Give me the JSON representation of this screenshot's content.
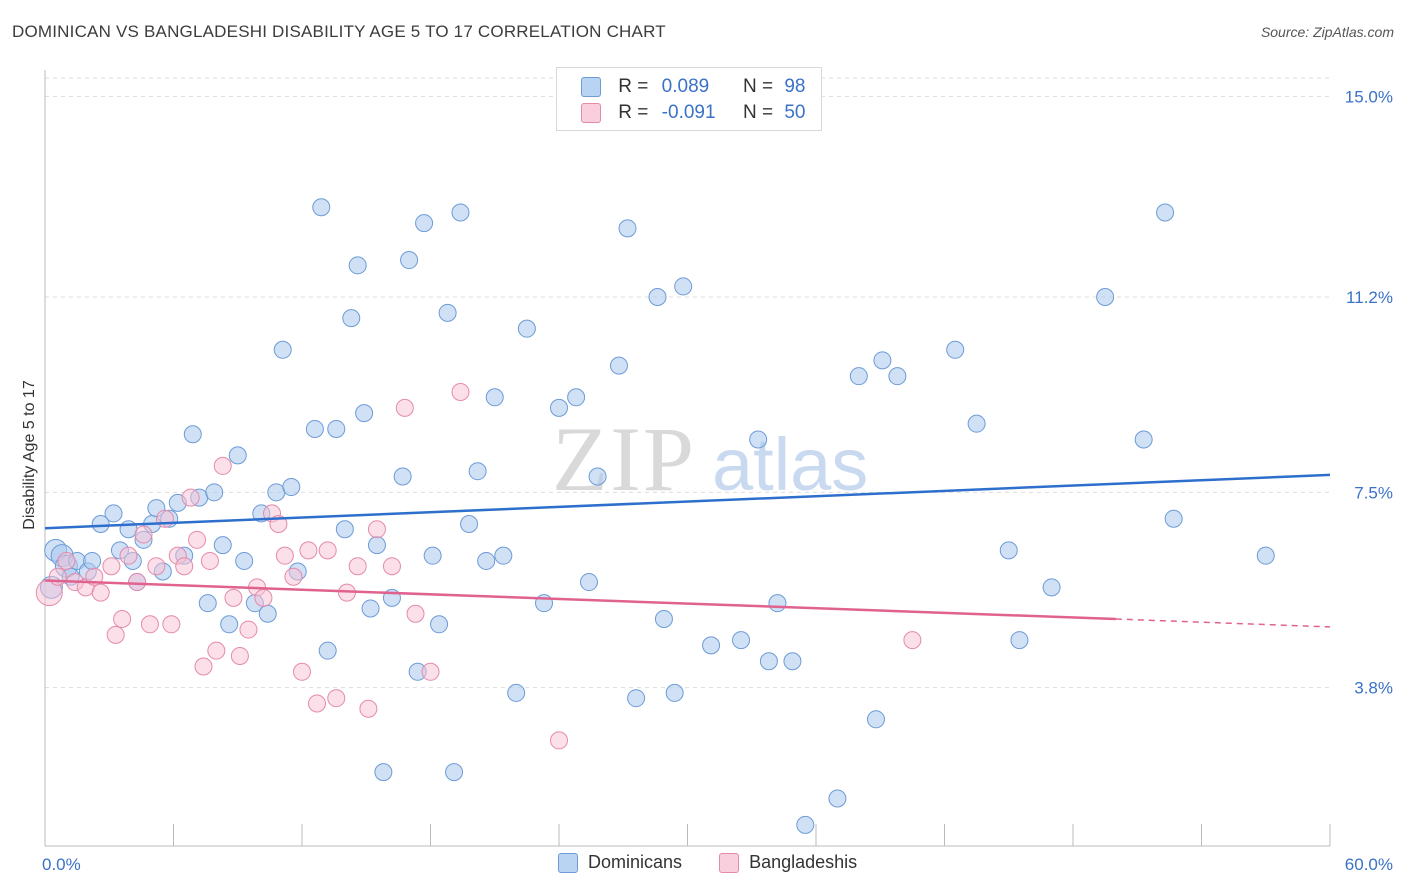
{
  "title": "DOMINICAN VS BANGLADESHI DISABILITY AGE 5 TO 17 CORRELATION CHART",
  "source": "Source: ZipAtlas.com",
  "watermark": {
    "zip": "ZIP",
    "atlas": "atlas"
  },
  "legend": {
    "dominicans": {
      "r_label": "R =",
      "r_value": "0.089",
      "n_label": "N =",
      "n_value": "98"
    },
    "bangladeshis": {
      "r_label": "R =",
      "r_value": "-0.091",
      "n_label": "N =",
      "n_value": "50"
    }
  },
  "colors": {
    "dominicans_fill": "#a9c8ef",
    "dominicans_stroke": "#6d9bd6",
    "dominicans_line": "#2e6fcd",
    "bangladeshis_fill": "#f7c1d3",
    "bangladeshis_stroke": "#e58aab",
    "bangladeshis_line": "#e0628f",
    "tick_label": "#3a72c8",
    "grid": "#dddddd"
  },
  "chart_data": {
    "type": "scatter",
    "title": "DOMINICAN VS BANGLADESHI DISABILITY AGE 5 TO 17 CORRELATION CHART",
    "xlabel": "",
    "ylabel": "Disability Age 5 to 17",
    "xlim": [
      0,
      60
    ],
    "ylim": [
      0.8,
      15.5
    ],
    "x_tick_labels": [
      "0.0%",
      "60.0%"
    ],
    "y_ticks": [
      3.8,
      7.5,
      11.2,
      15.0
    ],
    "y_tick_labels": [
      "3.8%",
      "7.5%",
      "11.2%",
      "15.0%"
    ],
    "grid": true,
    "legend_position": "bottom",
    "series": [
      {
        "name": "Dominicans",
        "trend": {
          "x": [
            0,
            60
          ],
          "y": [
            6.82,
            7.83
          ]
        },
        "points": [
          [
            0.5,
            6.4
          ],
          [
            0.8,
            6.3
          ],
          [
            1.0,
            6.1
          ],
          [
            1.2,
            5.9
          ],
          [
            1.5,
            6.2
          ],
          [
            2.0,
            6.0
          ],
          [
            2.2,
            6.2
          ],
          [
            2.6,
            6.9
          ],
          [
            3.2,
            7.1
          ],
          [
            3.5,
            6.4
          ],
          [
            3.9,
            6.8
          ],
          [
            4.1,
            6.2
          ],
          [
            4.3,
            5.8
          ],
          [
            4.6,
            6.6
          ],
          [
            5.0,
            6.9
          ],
          [
            5.2,
            7.2
          ],
          [
            5.5,
            6.0
          ],
          [
            5.8,
            7.0
          ],
          [
            6.2,
            7.3
          ],
          [
            6.5,
            6.3
          ],
          [
            6.9,
            8.6
          ],
          [
            7.2,
            7.4
          ],
          [
            7.6,
            5.4
          ],
          [
            7.9,
            7.5
          ],
          [
            8.3,
            6.5
          ],
          [
            8.6,
            5.0
          ],
          [
            9.0,
            8.2
          ],
          [
            9.3,
            6.2
          ],
          [
            9.8,
            5.4
          ],
          [
            10.1,
            7.1
          ],
          [
            10.4,
            5.2
          ],
          [
            10.8,
            7.5
          ],
          [
            11.1,
            10.2
          ],
          [
            11.5,
            7.6
          ],
          [
            11.8,
            6.0
          ],
          [
            12.6,
            8.7
          ],
          [
            12.9,
            12.9
          ],
          [
            13.2,
            4.5
          ],
          [
            13.6,
            8.7
          ],
          [
            14.0,
            6.8
          ],
          [
            14.3,
            10.8
          ],
          [
            14.6,
            11.8
          ],
          [
            14.9,
            9.0
          ],
          [
            15.2,
            5.3
          ],
          [
            15.5,
            6.5
          ],
          [
            15.8,
            2.2
          ],
          [
            16.2,
            5.5
          ],
          [
            16.7,
            7.8
          ],
          [
            17.0,
            11.9
          ],
          [
            17.4,
            4.1
          ],
          [
            17.7,
            12.6
          ],
          [
            18.1,
            6.3
          ],
          [
            18.4,
            5.0
          ],
          [
            18.8,
            10.9
          ],
          [
            19.1,
            2.2
          ],
          [
            19.4,
            12.8
          ],
          [
            19.8,
            6.9
          ],
          [
            20.2,
            7.9
          ],
          [
            20.6,
            6.2
          ],
          [
            21.0,
            9.3
          ],
          [
            21.4,
            6.3
          ],
          [
            22.0,
            3.7
          ],
          [
            22.5,
            10.6
          ],
          [
            23.3,
            5.4
          ],
          [
            24.0,
            9.1
          ],
          [
            24.8,
            9.3
          ],
          [
            25.4,
            5.8
          ],
          [
            25.8,
            7.8
          ],
          [
            26.8,
            9.9
          ],
          [
            27.2,
            12.5
          ],
          [
            27.6,
            3.6
          ],
          [
            28.6,
            11.2
          ],
          [
            28.9,
            5.1
          ],
          [
            29.4,
            3.7
          ],
          [
            29.8,
            11.4
          ],
          [
            31.1,
            4.6
          ],
          [
            32.5,
            4.7
          ],
          [
            33.3,
            8.5
          ],
          [
            34.2,
            5.4
          ],
          [
            34.9,
            4.3
          ],
          [
            37.0,
            1.7
          ],
          [
            38.0,
            9.7
          ],
          [
            38.8,
            3.2
          ],
          [
            39.1,
            10.0
          ],
          [
            39.8,
            9.7
          ],
          [
            42.5,
            10.2
          ],
          [
            43.5,
            8.8
          ],
          [
            45.0,
            6.4
          ],
          [
            45.5,
            4.7
          ],
          [
            47.0,
            5.7
          ],
          [
            49.5,
            11.2
          ],
          [
            51.3,
            8.5
          ],
          [
            52.3,
            12.8
          ],
          [
            52.7,
            7.0
          ],
          [
            57.0,
            6.3
          ],
          [
            35.5,
            1.2
          ],
          [
            33.8,
            4.3
          ],
          [
            0.3,
            5.7
          ]
        ]
      },
      {
        "name": "Bangladeshis",
        "trend": {
          "x": [
            0,
            50
          ],
          "y": [
            5.83,
            5.1
          ]
        },
        "trend_dashed": {
          "x": [
            50,
            60
          ],
          "y": [
            5.1,
            4.95
          ]
        },
        "points": [
          [
            0.2,
            5.6
          ],
          [
            0.6,
            5.9
          ],
          [
            1.0,
            6.2
          ],
          [
            1.4,
            5.8
          ],
          [
            1.9,
            5.7
          ],
          [
            2.3,
            5.9
          ],
          [
            2.6,
            5.6
          ],
          [
            3.1,
            6.1
          ],
          [
            3.3,
            4.8
          ],
          [
            3.6,
            5.1
          ],
          [
            3.9,
            6.3
          ],
          [
            4.3,
            5.8
          ],
          [
            4.6,
            6.7
          ],
          [
            4.9,
            5.0
          ],
          [
            5.2,
            6.1
          ],
          [
            5.6,
            7.0
          ],
          [
            5.9,
            5.0
          ],
          [
            6.2,
            6.3
          ],
          [
            6.5,
            6.1
          ],
          [
            6.8,
            7.4
          ],
          [
            7.1,
            6.6
          ],
          [
            7.4,
            4.2
          ],
          [
            7.7,
            6.2
          ],
          [
            8.0,
            4.5
          ],
          [
            8.3,
            8.0
          ],
          [
            8.8,
            5.5
          ],
          [
            9.1,
            4.4
          ],
          [
            9.5,
            4.9
          ],
          [
            9.9,
            5.7
          ],
          [
            10.2,
            5.5
          ],
          [
            10.6,
            7.1
          ],
          [
            10.9,
            6.9
          ],
          [
            11.2,
            6.3
          ],
          [
            11.6,
            5.9
          ],
          [
            12.0,
            4.1
          ],
          [
            12.3,
            6.4
          ],
          [
            12.7,
            3.5
          ],
          [
            13.2,
            6.4
          ],
          [
            13.6,
            3.6
          ],
          [
            14.1,
            5.6
          ],
          [
            14.6,
            6.1
          ],
          [
            15.1,
            3.4
          ],
          [
            15.5,
            6.8
          ],
          [
            16.2,
            6.1
          ],
          [
            16.8,
            9.1
          ],
          [
            17.3,
            5.2
          ],
          [
            18.0,
            4.1
          ],
          [
            19.4,
            9.4
          ],
          [
            24.0,
            2.8
          ],
          [
            40.5,
            4.7
          ]
        ]
      }
    ]
  }
}
